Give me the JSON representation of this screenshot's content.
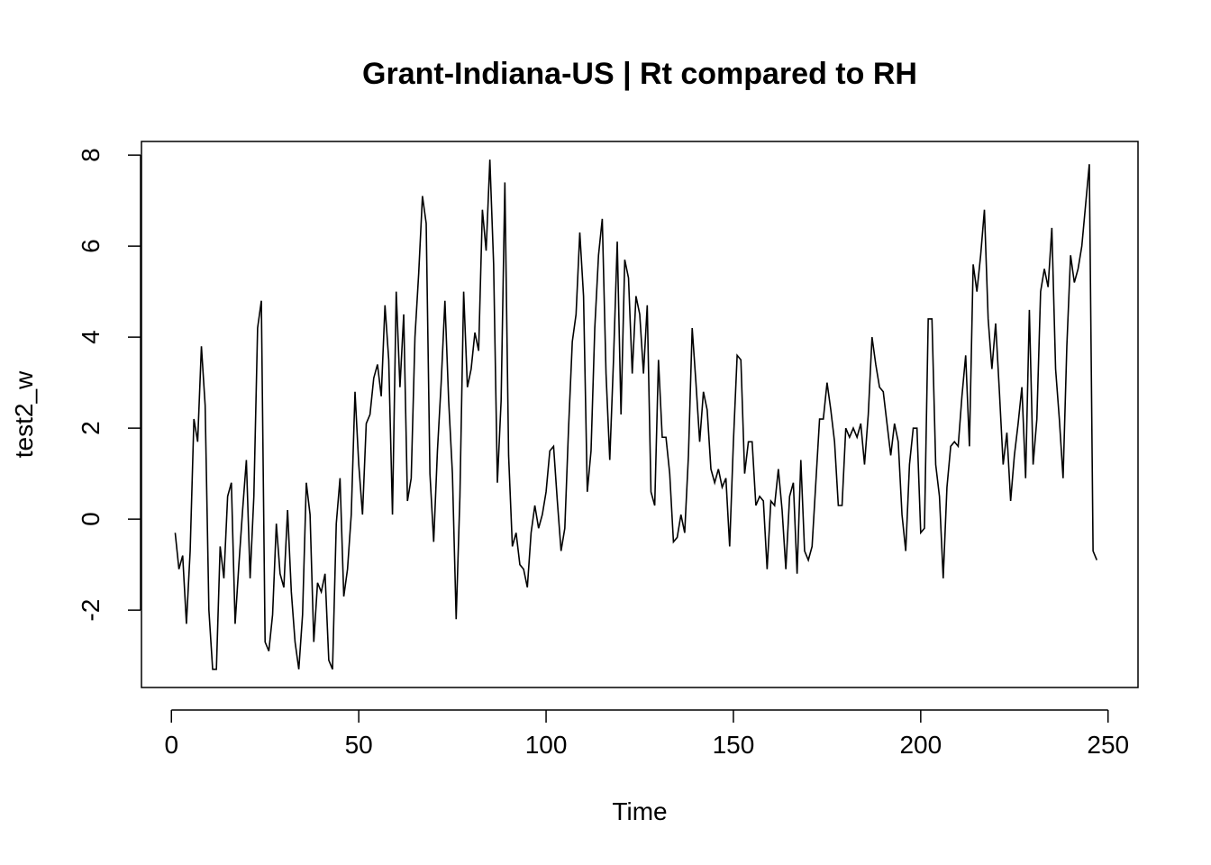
{
  "chart_data": {
    "type": "line",
    "title": "Grant-Indiana-US | Rt compared to RH",
    "xlabel": "Time",
    "ylabel": "test2_w",
    "xlim": [
      -8,
      258
    ],
    "ylim": [
      -3.7,
      8.3
    ],
    "x_ticks": [
      0,
      50,
      100,
      150,
      200,
      250
    ],
    "y_ticks": [
      -2,
      0,
      2,
      4,
      6,
      8
    ],
    "x_tick_labels": [
      "0",
      "50",
      "100",
      "150",
      "200",
      "250"
    ],
    "y_tick_labels": [
      "-2",
      "0",
      "2",
      "4",
      "6",
      "8"
    ],
    "line_color": "#000000",
    "grid": false,
    "series": [
      {
        "x_start": 1,
        "values": [
          -0.3,
          -1.1,
          -0.8,
          -2.3,
          -0.7,
          2.2,
          1.7,
          3.8,
          2.5,
          -2.0,
          -3.3,
          -3.3,
          -0.6,
          -1.3,
          0.5,
          0.8,
          -2.3,
          -1.0,
          0.2,
          1.3,
          -1.3,
          0.5,
          4.2,
          4.8,
          -2.7,
          -2.9,
          -2.1,
          -0.1,
          -1.2,
          -1.5,
          0.2,
          -1.6,
          -2.7,
          -3.3,
          -2.1,
          0.8,
          0.1,
          -2.7,
          -1.4,
          -1.6,
          -1.2,
          -3.1,
          -3.3,
          -0.1,
          0.9,
          -1.7,
          -1.1,
          0.1,
          2.8,
          1.2,
          0.1,
          2.1,
          2.3,
          3.1,
          3.4,
          2.7,
          4.7,
          3.5,
          0.1,
          5.0,
          2.9,
          4.5,
          0.4,
          0.9,
          4.0,
          5.4,
          7.1,
          6.5,
          1.0,
          -0.5,
          1.5,
          3.0,
          4.8,
          2.6,
          1.0,
          -2.2,
          0.5,
          5.0,
          2.9,
          3.3,
          4.1,
          3.7,
          6.8,
          5.9,
          7.9,
          5.6,
          0.8,
          2.6,
          7.4,
          1.4,
          -0.6,
          -0.3,
          -1.0,
          -1.1,
          -1.5,
          -0.3,
          0.3,
          -0.2,
          0.1,
          0.6,
          1.5,
          1.6,
          0.4,
          -0.7,
          -0.2,
          2.0,
          3.9,
          4.5,
          6.3,
          4.9,
          0.6,
          1.5,
          4.2,
          5.8,
          6.6,
          3.2,
          1.3,
          3.5,
          6.1,
          2.3,
          5.7,
          5.3,
          3.2,
          4.9,
          4.5,
          3.2,
          4.7,
          0.6,
          0.3,
          3.5,
          1.8,
          1.8,
          1.0,
          -0.5,
          -0.4,
          0.1,
          -0.3,
          1.4,
          4.2,
          3.0,
          1.7,
          2.8,
          2.4,
          1.1,
          0.8,
          1.1,
          0.7,
          0.9,
          -0.6,
          1.7,
          3.6,
          3.5,
          1.0,
          1.7,
          1.7,
          0.3,
          0.5,
          0.4,
          -1.1,
          0.4,
          0.3,
          1.1,
          0.2,
          -1.1,
          0.5,
          0.8,
          -1.2,
          1.3,
          -0.7,
          -0.9,
          -0.6,
          0.8,
          2.2,
          2.2,
          3.0,
          2.4,
          1.7,
          0.3,
          0.3,
          2.0,
          1.8,
          2.0,
          1.8,
          2.1,
          1.2,
          2.3,
          4.0,
          3.4,
          2.9,
          2.8,
          2.1,
          1.4,
          2.1,
          1.7,
          0.1,
          -0.7,
          1.2,
          2.0,
          2.0,
          -0.3,
          -0.2,
          4.4,
          4.4,
          1.2,
          0.5,
          -1.3,
          0.7,
          1.6,
          1.7,
          1.6,
          2.7,
          3.6,
          1.6,
          5.6,
          5.0,
          5.8,
          6.8,
          4.4,
          3.3,
          4.3,
          2.8,
          1.2,
          1.9,
          0.4,
          1.4,
          2.1,
          2.9,
          0.9,
          4.6,
          1.2,
          2.2,
          5.0,
          5.5,
          5.1,
          6.4,
          3.3,
          2.2,
          0.9,
          3.8,
          5.8,
          5.2,
          5.5,
          6.0,
          6.9,
          7.8,
          -0.7,
          -0.9
        ]
      }
    ]
  }
}
